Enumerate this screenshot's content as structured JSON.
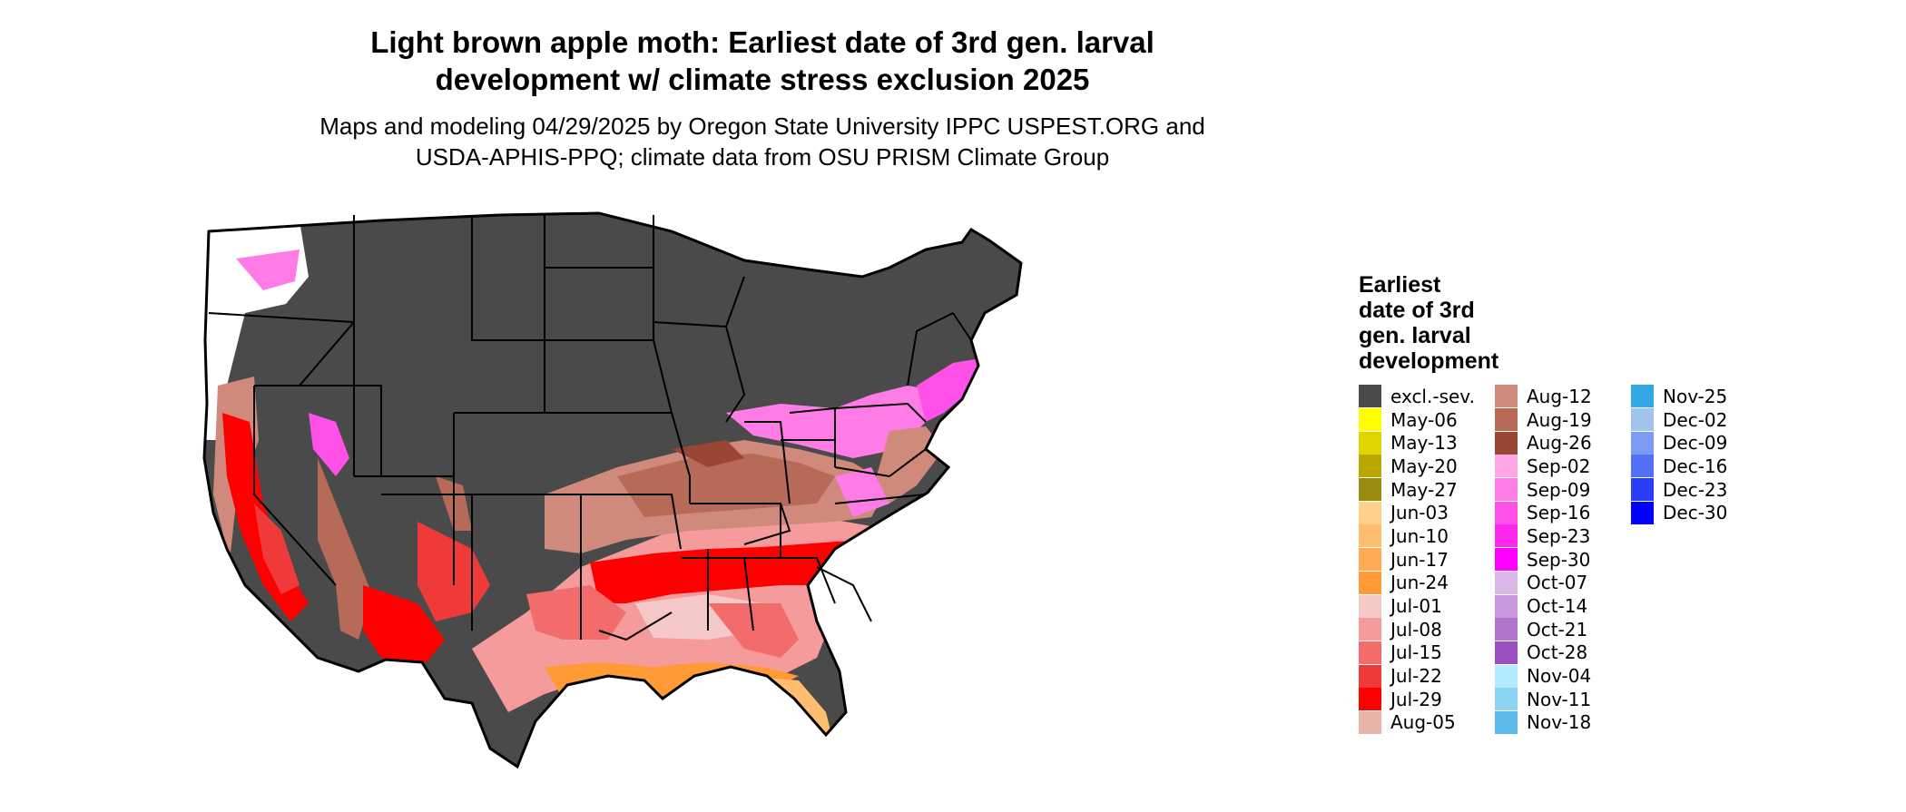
{
  "title": "Light brown apple moth: Earliest date of 3rd gen. larval\ndevelopment w/ climate stress exclusion 2025",
  "subtitle": "Maps and modeling 04/29/2025 by Oregon State University IPPC USPEST.ORG and\nUSDA-APHIS-PPQ; climate data from OSU PRISM Climate Group",
  "legend": {
    "title": "Earliest\ndate of 3rd\ngen. larval\ndevelopment",
    "items": [
      {
        "label": "excl.-sev.",
        "color": "#4a4a4a"
      },
      {
        "label": "May-06",
        "color": "#ffff00"
      },
      {
        "label": "May-13",
        "color": "#e0d500"
      },
      {
        "label": "May-20",
        "color": "#b8a800"
      },
      {
        "label": "May-27",
        "color": "#9a8a10"
      },
      {
        "label": "Jun-03",
        "color": "#ffd08a"
      },
      {
        "label": "Jun-10",
        "color": "#ffbd70"
      },
      {
        "label": "Jun-17",
        "color": "#ffaa55"
      },
      {
        "label": "Jun-24",
        "color": "#ff9a35"
      },
      {
        "label": "Jul-01",
        "color": "#f6c9c9"
      },
      {
        "label": "Jul-08",
        "color": "#f59b9b"
      },
      {
        "label": "Jul-15",
        "color": "#f26c6c"
      },
      {
        "label": "Jul-22",
        "color": "#f03a3a"
      },
      {
        "label": "Jul-29",
        "color": "#ff0000"
      },
      {
        "label": "Aug-05",
        "color": "#e6b4a8"
      },
      {
        "label": "Aug-12",
        "color": "#d08a7c"
      },
      {
        "label": "Aug-19",
        "color": "#b86a58"
      },
      {
        "label": "Aug-26",
        "color": "#9a4634"
      },
      {
        "label": "Sep-02",
        "color": "#ffa6e6"
      },
      {
        "label": "Sep-09",
        "color": "#ff7ce6"
      },
      {
        "label": "Sep-16",
        "color": "#ff50e8"
      },
      {
        "label": "Sep-23",
        "color": "#ff28ee"
      },
      {
        "label": "Sep-30",
        "color": "#ff00ff"
      },
      {
        "label": "Oct-07",
        "color": "#dcb8e8"
      },
      {
        "label": "Oct-14",
        "color": "#c896dc"
      },
      {
        "label": "Oct-21",
        "color": "#b074cc"
      },
      {
        "label": "Oct-28",
        "color": "#9a4ec0"
      },
      {
        "label": "Nov-04",
        "color": "#b4eaff"
      },
      {
        "label": "Nov-11",
        "color": "#8cd4f4"
      },
      {
        "label": "Nov-18",
        "color": "#5cbaec"
      },
      {
        "label": "Nov-25",
        "color": "#32a8e4"
      },
      {
        "label": "Dec-02",
        "color": "#a0c4ec"
      },
      {
        "label": "Dec-09",
        "color": "#7c9cf2"
      },
      {
        "label": "Dec-16",
        "color": "#5470f6"
      },
      {
        "label": "Dec-23",
        "color": "#2a3efa"
      },
      {
        "label": "Dec-30",
        "color": "#0000ff"
      }
    ]
  }
}
